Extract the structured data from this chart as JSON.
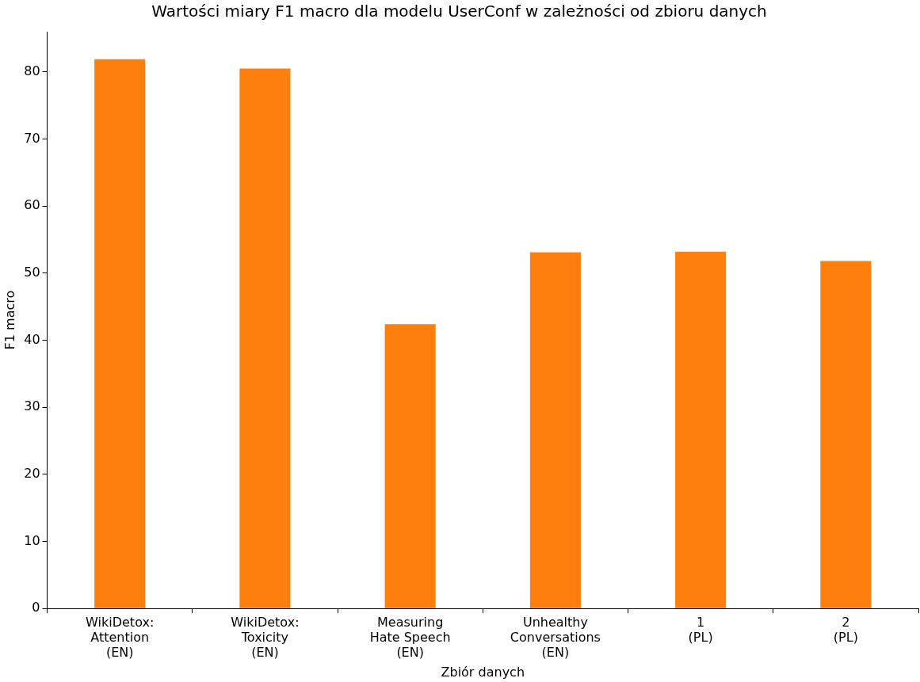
{
  "chart_data": {
    "type": "bar",
    "title": "Wartości miary F1 macro dla modelu UserConf w zależności od zbioru danych",
    "xlabel": "Zbiór danych",
    "ylabel": "F1 macro",
    "categories": [
      "WikiDetox:\nAttention\n(EN)",
      "WikiDetox:\nToxicity\n(EN)",
      "Measuring\nHate Speech\n(EN)",
      "Unhealthy\nConversations\n(EN)",
      "1\n(PL)",
      "2\n(PL)"
    ],
    "values": [
      81.9,
      80.5,
      42.4,
      53.1,
      53.2,
      51.8
    ],
    "color": "#ff7f0e",
    "ylim": [
      0,
      86
    ],
    "yticks": [
      0,
      10,
      20,
      30,
      40,
      50,
      60,
      70,
      80
    ],
    "grid": false,
    "legend": false
  }
}
